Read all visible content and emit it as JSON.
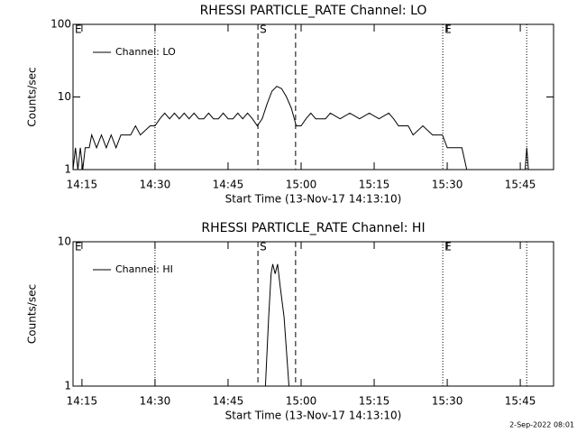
{
  "chart_data": [
    {
      "type": "line",
      "title": "RHESSI PARTICLE_RATE Channel: LO",
      "x_label": "Start Time (13-Nov-17 14:13:10)",
      "y_label": "Counts/sec",
      "log_y": true,
      "xlim": [
        "14:13:10",
        "15:51:50"
      ],
      "ylim": [
        1,
        100
      ],
      "yticks": [
        1,
        10,
        100
      ],
      "xticks": [
        "14:15",
        "14:30",
        "14:45",
        "15:00",
        "15:15",
        "15:30",
        "15:45"
      ],
      "legend": "upper left",
      "event_lines": [
        {
          "x": "14:30:00",
          "style": "dotted"
        },
        {
          "x": "14:51:08",
          "style": "dashed"
        },
        {
          "x": "14:58:52",
          "style": "dashed"
        },
        {
          "x": "15:29:05",
          "style": "dotted"
        },
        {
          "x": "15:46:19",
          "style": "dotted"
        }
      ],
      "annotations": [
        {
          "text": "E",
          "x": "14:13:10"
        },
        {
          "text": "S",
          "x": "14:51:08"
        },
        {
          "text": "E",
          "x": "15:29:05"
        }
      ],
      "x": [
        "14:13:10",
        "14:13:40",
        "14:14:10",
        "14:14:40",
        "14:15:10",
        "14:15:40",
        "14:16:30",
        "14:17:00",
        "14:18:00",
        "14:19:00",
        "14:20:00",
        "14:21:00",
        "14:22:00",
        "14:23:00",
        "14:25:00",
        "14:26:00",
        "14:27:00",
        "14:29:00",
        "14:30:00",
        "14:31:00",
        "14:32:00",
        "14:33:00",
        "14:34:00",
        "14:35:00",
        "14:36:00",
        "14:37:00",
        "14:38:00",
        "14:39:00",
        "14:40:00",
        "14:41:00",
        "14:42:00",
        "14:43:00",
        "14:44:00",
        "14:45:00",
        "14:46:00",
        "14:47:00",
        "14:48:00",
        "14:49:00",
        "14:50:00",
        "14:51:00",
        "14:52:00",
        "14:53:00",
        "14:54:00",
        "14:55:00",
        "14:56:00",
        "14:57:00",
        "14:58:00",
        "14:59:00",
        "15:00:00",
        "15:01:00",
        "15:02:00",
        "15:03:00",
        "15:05:00",
        "15:06:00",
        "15:08:00",
        "15:10:00",
        "15:12:00",
        "15:14:00",
        "15:16:00",
        "15:18:00",
        "15:19:00",
        "15:20:00",
        "15:22:00",
        "15:23:00",
        "15:25:00",
        "15:27:00",
        "15:29:00",
        "15:30:00",
        "15:31:00",
        "15:32:00",
        "15:33:00",
        "15:34:00",
        "15:40:00",
        "15:46:00",
        "15:46:20",
        "15:46:40"
      ],
      "series": [
        {
          "name": "Channel: LO",
          "color": "#000000",
          "values": [
            1,
            2,
            1,
            2,
            1,
            2,
            2,
            3,
            2,
            3,
            2,
            3,
            2,
            3,
            3,
            4,
            3,
            4,
            4,
            5,
            6,
            5,
            6,
            5,
            6,
            5,
            6,
            5,
            5,
            6,
            5,
            5,
            6,
            5,
            5,
            6,
            5,
            6,
            5,
            4,
            5,
            8,
            12,
            14,
            13,
            10,
            7,
            4,
            4,
            5,
            6,
            5,
            5,
            6,
            5,
            6,
            5,
            6,
            5,
            6,
            5,
            4,
            4,
            3,
            4,
            3,
            3,
            2,
            2,
            2,
            2,
            1,
            null,
            1,
            2,
            1
          ]
        }
      ]
    },
    {
      "type": "line",
      "title": "RHESSI PARTICLE_RATE Channel: HI",
      "x_label": "Start Time (13-Nov-17 14:13:10)",
      "y_label": "Counts/sec",
      "log_y": true,
      "xlim": [
        "14:13:10",
        "15:51:50"
      ],
      "ylim": [
        1,
        10
      ],
      "yticks": [
        1,
        10
      ],
      "xticks": [
        "14:15",
        "14:30",
        "14:45",
        "15:00",
        "15:15",
        "15:30",
        "15:45"
      ],
      "legend": "upper left",
      "event_lines": [
        {
          "x": "14:30:00",
          "style": "dotted"
        },
        {
          "x": "14:51:08",
          "style": "dashed"
        },
        {
          "x": "14:58:52",
          "style": "dashed"
        },
        {
          "x": "15:29:05",
          "style": "dotted"
        },
        {
          "x": "15:46:19",
          "style": "dotted"
        }
      ],
      "annotations": [
        {
          "text": "E",
          "x": "14:13:10"
        },
        {
          "text": "S",
          "x": "14:51:08"
        },
        {
          "text": "E",
          "x": "15:29:05"
        }
      ],
      "x": [
        "14:52:40",
        "14:53:20",
        "14:53:50",
        "14:54:10",
        "14:54:40",
        "14:55:10",
        "14:55:40",
        "14:56:30",
        "14:57:30"
      ],
      "series": [
        {
          "name": "Channel: HI",
          "color": "#000000",
          "values": [
            1,
            3,
            6,
            7,
            6,
            7,
            5,
            3,
            1
          ]
        }
      ]
    }
  ],
  "footer": "2-Sep-2022 08:01"
}
